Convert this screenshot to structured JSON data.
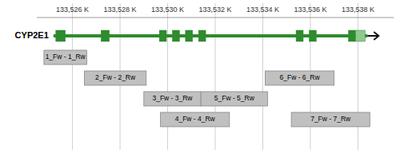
{
  "chart_data": {
    "type": "gene_track",
    "xlim": [
      133524500,
      133539500
    ],
    "xticks": [
      {
        "value": 133526000,
        "label": "133,526 K"
      },
      {
        "value": 133528000,
        "label": "133,528 K"
      },
      {
        "value": 133530000,
        "label": "133,530 K"
      },
      {
        "value": 133532000,
        "label": "133,532 K"
      },
      {
        "value": 133534000,
        "label": "133,534 K"
      },
      {
        "value": 133536000,
        "label": "133,536 K"
      },
      {
        "value": 133538000,
        "label": "133,538 K"
      }
    ],
    "grid": true,
    "series": [
      {
        "type": "gene",
        "name": "CYP2E1",
        "start": 133525200,
        "end": 133538400,
        "color": "#2e8b2e",
        "exons": [
          [
            133525300,
            133525700
          ],
          [
            133527200,
            133527550
          ],
          [
            133529650,
            133529950
          ],
          [
            133530200,
            133530500
          ],
          [
            133530750,
            133531050
          ],
          [
            133531300,
            133531600
          ],
          [
            133535400,
            133535700
          ],
          [
            133535950,
            133536250
          ],
          [
            133537600,
            133537900
          ],
          [
            133537900,
            133538300
          ]
        ],
        "colors": [
          "#2e8b2e",
          "#2e8b2e",
          "#2e8b2e",
          "#2e8b2e",
          "#2e8b2e",
          "#2e8b2e",
          "#2e8b2e",
          "#2e8b2e",
          "#2e8b2e",
          "#90c890"
        ]
      },
      {
        "type": "fragment",
        "color": "#c0c0c0",
        "labels": [
          "1_Fw - 1_Rw",
          "2_Fw - 2_Rw",
          "3_Fw - 3_Rw",
          "4_Fw - 4_Rw",
          "5_Fw - 5_Rw",
          "6_Fw - 6_Rw",
          "7_Fw - 7_Rw"
        ],
        "start": [
          133524800,
          133526500,
          133529000,
          133529700,
          133531400,
          133534100,
          133535200
        ],
        "end": [
          133526600,
          133529100,
          133531400,
          133532600,
          133534200,
          133537000,
          133538500
        ],
        "lane": [
          0,
          1,
          2,
          3,
          2,
          1,
          3
        ]
      }
    ]
  }
}
